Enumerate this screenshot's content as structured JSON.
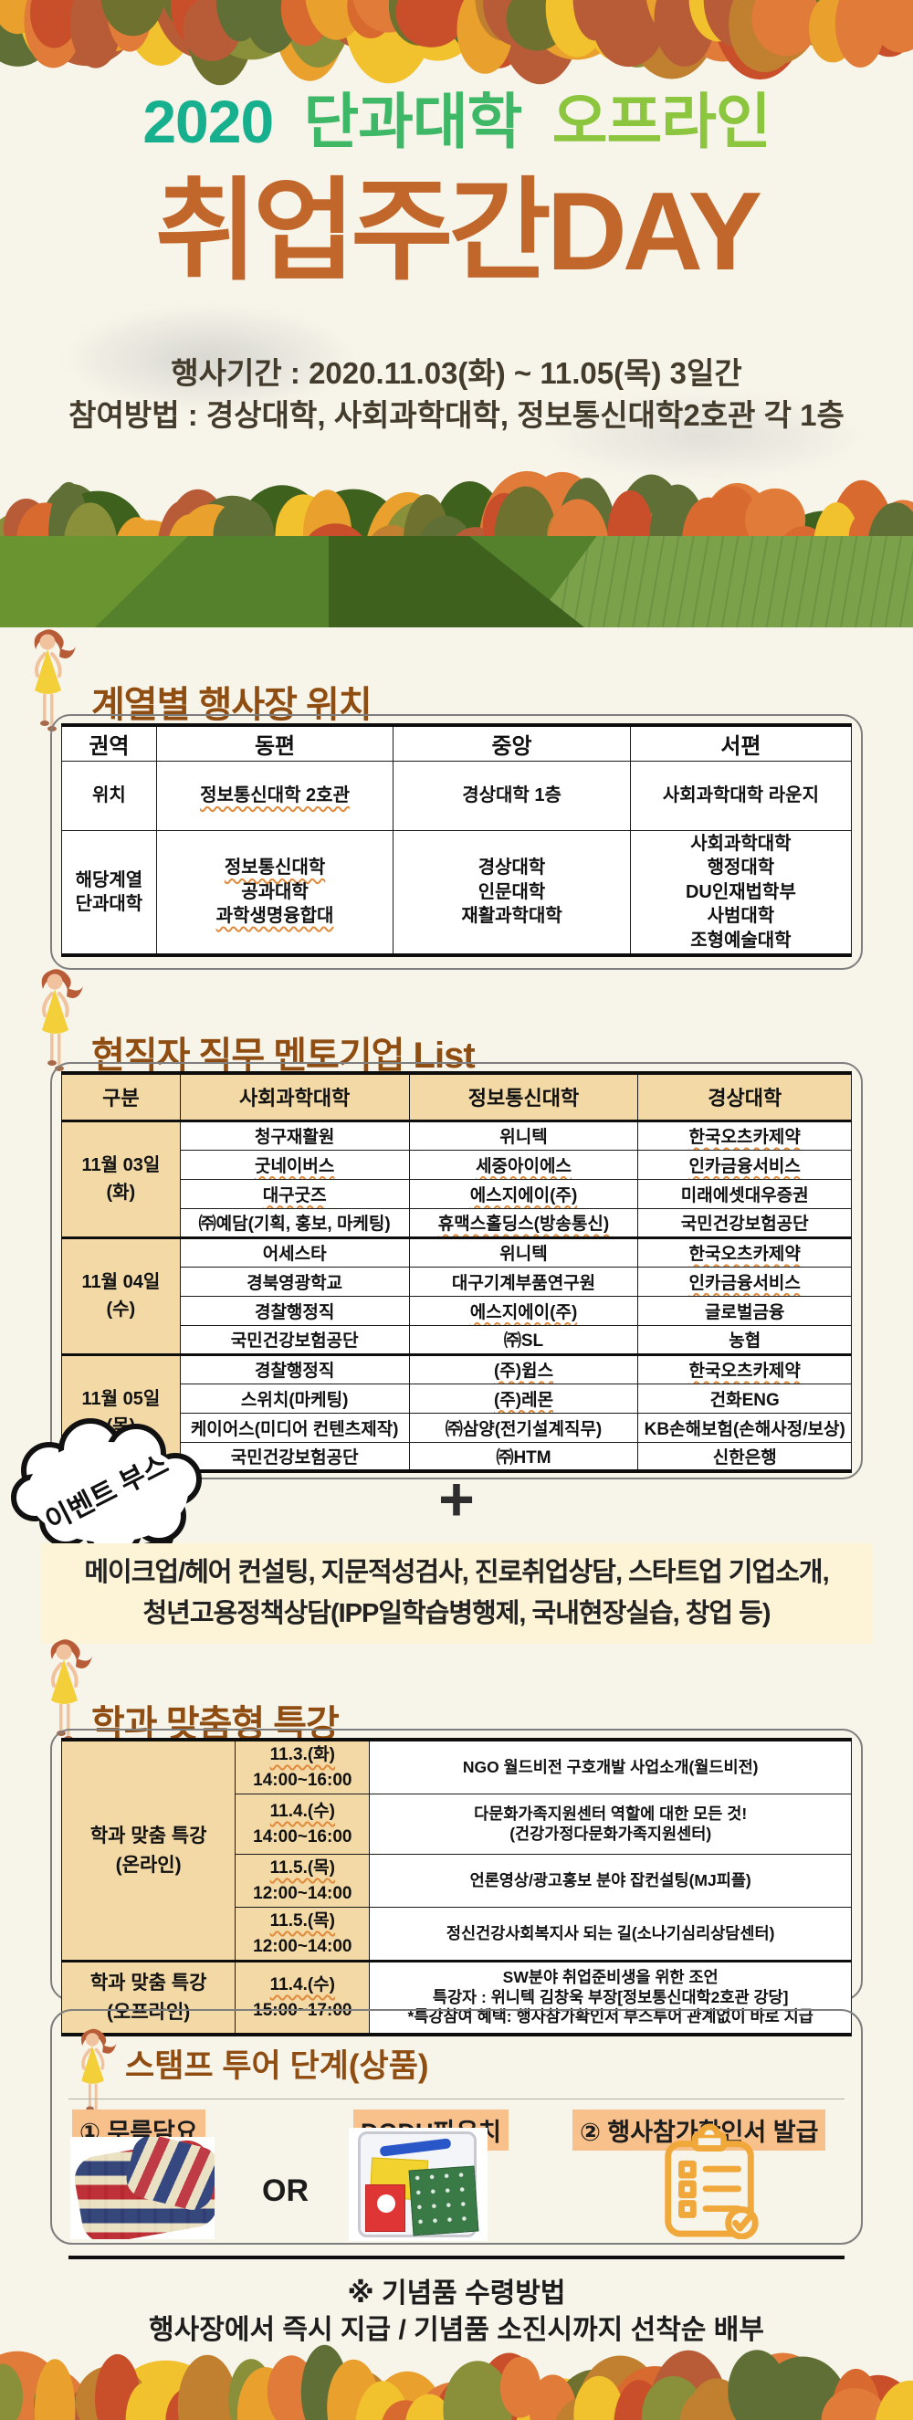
{
  "colors": {
    "bg": "#f7f4e9",
    "title_year": "#17b08e",
    "title_college": "#3eb766",
    "title_offline": "#8cc63f",
    "title_main": "#c2672c",
    "section_title": "#8f4d12",
    "table_header_bg": "#f3d9a5",
    "highlight_bg": "#f8c18c",
    "booth_band_bg": "#fdf3d6",
    "icon_orange": "#f0a83a",
    "autumn_palette": [
      "#e07b39",
      "#c94f2b",
      "#6e722e",
      "#e9a02c",
      "#f2c12e",
      "#8a8f3a",
      "#b85c38",
      "#d96a2f",
      "#5f6f35",
      "#c1802f"
    ],
    "green_palette": [
      "#55812c",
      "#69942f",
      "#3f611e",
      "#7ba24b"
    ]
  },
  "header": {
    "year": "2020",
    "college": "단과대학",
    "offline": "오프라인",
    "main_title": "취업주간DAY",
    "period": "행사기간 : 2020.11.03(화) ~ 11.05(목) 3일간",
    "method": "참여방법 : 경상대학, 사회과학대학, 정보통신대학2호관 각 1층"
  },
  "sections": {
    "location": {
      "title": "계열별 행사장 위치",
      "table": {
        "headers": [
          "권역",
          "동편",
          "중앙",
          "서편"
        ],
        "rows": [
          {
            "label": [
              "위치"
            ],
            "cells": [
              [
                "정보통신대학 2호관"
              ],
              [
                "경상대학 1층"
              ],
              [
                "사회과학대학 라운지"
              ]
            ]
          },
          {
            "label": [
              "해당계열",
              "단과대학"
            ],
            "cells": [
              [
                "정보통신대학",
                "공과대학",
                "과학생명융합대"
              ],
              [
                "경상대학",
                "인문대학",
                "재활과학대학"
              ],
              [
                "사회과학대학",
                "행정대학",
                "DU인재법학부",
                "사범대학",
                "조형예술대학"
              ]
            ]
          }
        ]
      }
    },
    "mentor": {
      "title": "현직자 직무 멘토기업 List",
      "headers": [
        "구분",
        "사회과학대학",
        "정보통신대학",
        "경상대학"
      ],
      "groups": [
        {
          "date": "11월 03일",
          "day": "(화)",
          "rows": [
            [
              "청구재활원",
              "위니텍",
              "한국오츠카제약"
            ],
            [
              "굿네이버스",
              "세중아이에스",
              "인카금융서비스"
            ],
            [
              "대구굿즈",
              "에스지에이(주)",
              "미래에셋대우증권"
            ],
            [
              "㈜예담(기획, 홍보, 마케팅)",
              "휴맥스홀딩스(방송통신)",
              "국민건강보험공단"
            ]
          ]
        },
        {
          "date": "11월 04일",
          "day": "(수)",
          "rows": [
            [
              "어세스타",
              "위니텍",
              "한국오츠카제약"
            ],
            [
              "경북영광학교",
              "대구기계부품연구원",
              "인카금융서비스"
            ],
            [
              "경찰행정직",
              "에스지에이(주)",
              "글로벌금융"
            ],
            [
              "국민건강보험공단",
              "㈜SL",
              "농협"
            ]
          ]
        },
        {
          "date": "11월 05일",
          "day": "(목)",
          "rows": [
            [
              "경찰행정직",
              "(주)윕스",
              "한국오츠카제약"
            ],
            [
              "스위치(마케팅)",
              "(주)레몬",
              "건화ENG"
            ],
            [
              "케이어스(미디어 컨텐츠제작)",
              "㈜삼양(전기설계직무)",
              "KB손해보험(손해사정/보상)"
            ],
            [
              "국민건강보험공단",
              "㈜HTM",
              "신한은행"
            ]
          ]
        }
      ],
      "bubble": "이벤트 부스",
      "plus": "+",
      "booth": [
        "메이크업/헤어 컨설팅, 지문적성검사, 진로취업상담, 스타트업 기업소개,",
        "청년고용정책상담(IPP일학습병행제, 국내현장실습, 창업 등)"
      ]
    },
    "lecture": {
      "title": "학과 맞춤형 특강",
      "groups": [
        {
          "label": [
            "학과 맞춤 특강",
            "(온라인)"
          ],
          "rows": [
            {
              "time": [
                "11.3.(화)",
                "14:00~16:00"
              ],
              "content": [
                "NGO 월드비전 구호개발 사업소개(월드비전)"
              ]
            },
            {
              "time": [
                "11.4.(수)",
                "14:00~16:00"
              ],
              "content": [
                "다문화가족지원센터 역할에 대한 모든 것!",
                "(건강가정다문화가족지원센터)"
              ]
            },
            {
              "time": [
                "11.5.(목)",
                "12:00~14:00"
              ],
              "content": [
                "언론영상/광고홍보 분야 잡컨설팅(MJ피플)"
              ]
            },
            {
              "time": [
                "11.5.(목)",
                "12:00~14:00"
              ],
              "content": [
                "정신건강사회복지사 되는 길(소나기심리상담센터)"
              ]
            }
          ]
        },
        {
          "label": [
            "학과 맞춤 특강",
            "(오프라인)"
          ],
          "rows": [
            {
              "time": [
                "11.4.(수)",
                "15:00~17:00"
              ],
              "content": [
                "SW분야 취업준비생을 위한 조언",
                "특강자 : 위니텍 김창욱 부장[정보통신대학2호관 강당]",
                "*특강참여 혜택: 행사참가확인서 부스투어 관계없이 바로 지급"
              ]
            }
          ]
        }
      ]
    },
    "stamp": {
      "title": "스탬프 투어 단계(상품)",
      "item1_label": "① 무릎담요",
      "or_label": "OR",
      "item2_label": "DODU파우치",
      "item3_label": "② 행사참가확인서 발급",
      "item1_icon": "blanket-photo",
      "item2_icon": "pouch-photo",
      "item3_icon": "clipboard-check-icon"
    }
  },
  "footer": {
    "note_title": "※ 기념품 수령방법",
    "note_body": "행사장에서 즉시 지급 / 기념품 소진시까지 선착순 배부"
  },
  "wavy_lines": [
    "정보통신대학 2호관",
    "정보통신대학",
    "과학생명융합대",
    "한국오츠카제약",
    "굿네이버스",
    "대구굿즈",
    "세중아이에스",
    "에스지에이(주)",
    "휴맥스홀딩스(방송통신)",
    "인카금융서비스",
    "(주)윕스",
    "(주)레몬",
    "11.3.(화)",
    "11.4.(수)",
    "11.5.(목)"
  ]
}
